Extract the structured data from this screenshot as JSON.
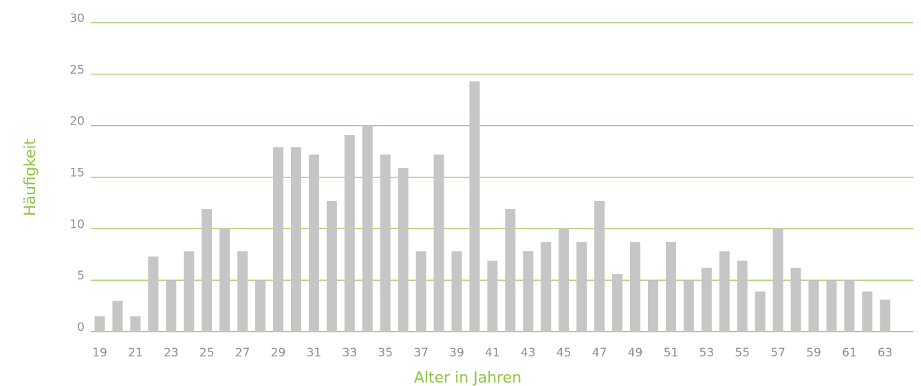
{
  "colors": {
    "accent": "#8dc63f",
    "bar": "#c6c6c6",
    "tick_text": "#8f8f8f"
  },
  "chart_data": {
    "type": "bar",
    "xlabel": "Alter in Jahren",
    "ylabel": "Häufigkeit",
    "ylim": [
      0,
      30
    ],
    "yticks": [
      0,
      5,
      10,
      15,
      20,
      25,
      30
    ],
    "grid": true,
    "categories": [
      19,
      20,
      21,
      22,
      23,
      24,
      25,
      26,
      27,
      28,
      29,
      30,
      31,
      32,
      33,
      34,
      35,
      36,
      37,
      38,
      39,
      40,
      41,
      42,
      43,
      44,
      45,
      46,
      47,
      48,
      49,
      50,
      51,
      52,
      53,
      54,
      55,
      56,
      57,
      58,
      59,
      60,
      61,
      62,
      63
    ],
    "xtick_labels": [
      "19",
      "21",
      "23",
      "25",
      "27",
      "29",
      "31",
      "33",
      "35",
      "37",
      "39",
      "41",
      "43",
      "45",
      "47",
      "49",
      "51",
      "53",
      "55",
      "57",
      "59",
      "61",
      "63"
    ],
    "values": [
      1.5,
      3,
      1.5,
      7.3,
      5,
      7.8,
      11.9,
      10,
      7.8,
      5,
      17.9,
      17.9,
      17.2,
      12.7,
      19.1,
      20,
      17.2,
      15.9,
      7.8,
      17.2,
      7.8,
      24.3,
      6.9,
      11.9,
      7.8,
      8.7,
      10,
      8.7,
      12.7,
      5.6,
      8.7,
      5,
      8.7,
      5,
      6.2,
      7.8,
      6.9,
      3.9,
      10,
      6.2,
      5,
      5,
      5,
      3.9,
      3.1
    ]
  }
}
